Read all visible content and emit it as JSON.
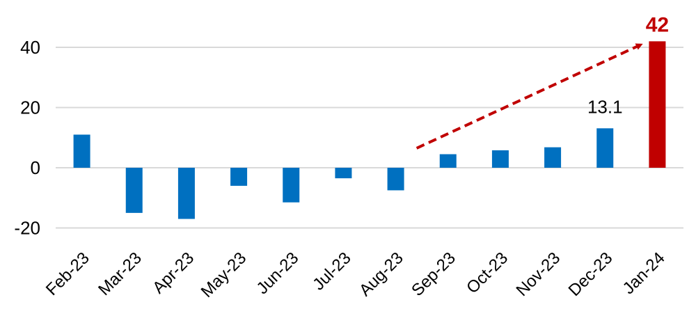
{
  "chart_data": {
    "type": "bar",
    "categories": [
      "Feb-23",
      "Mar-23",
      "Apr-23",
      "May-23",
      "Jun-23",
      "Jul-23",
      "Aug-23",
      "Sep-23",
      "Oct-23",
      "Nov-23",
      "Dec-23",
      "Jan-24"
    ],
    "values": [
      11,
      -15,
      -17,
      -6,
      -11.5,
      -3.5,
      -7.5,
      4.5,
      5.8,
      6.8,
      13.1,
      42
    ],
    "ylim": [
      -20,
      45
    ],
    "yticks": [
      40,
      20,
      0,
      -20
    ],
    "ytick_labels": [
      "40",
      "20",
      "0",
      "-20"
    ],
    "data_labels": [
      {
        "index": 10,
        "text": "13.1"
      },
      {
        "index": 11,
        "text": "42"
      }
    ],
    "highlight_index": 11,
    "trend_arrow": {
      "from_index": 6.4,
      "from_value": 6.5,
      "to_index": 10.7,
      "to_value": 41
    },
    "grid": true,
    "legend": "none",
    "colors": {
      "bar": "#0070C0",
      "highlight": "#C00000",
      "grid": "#D9D9D9"
    }
  }
}
